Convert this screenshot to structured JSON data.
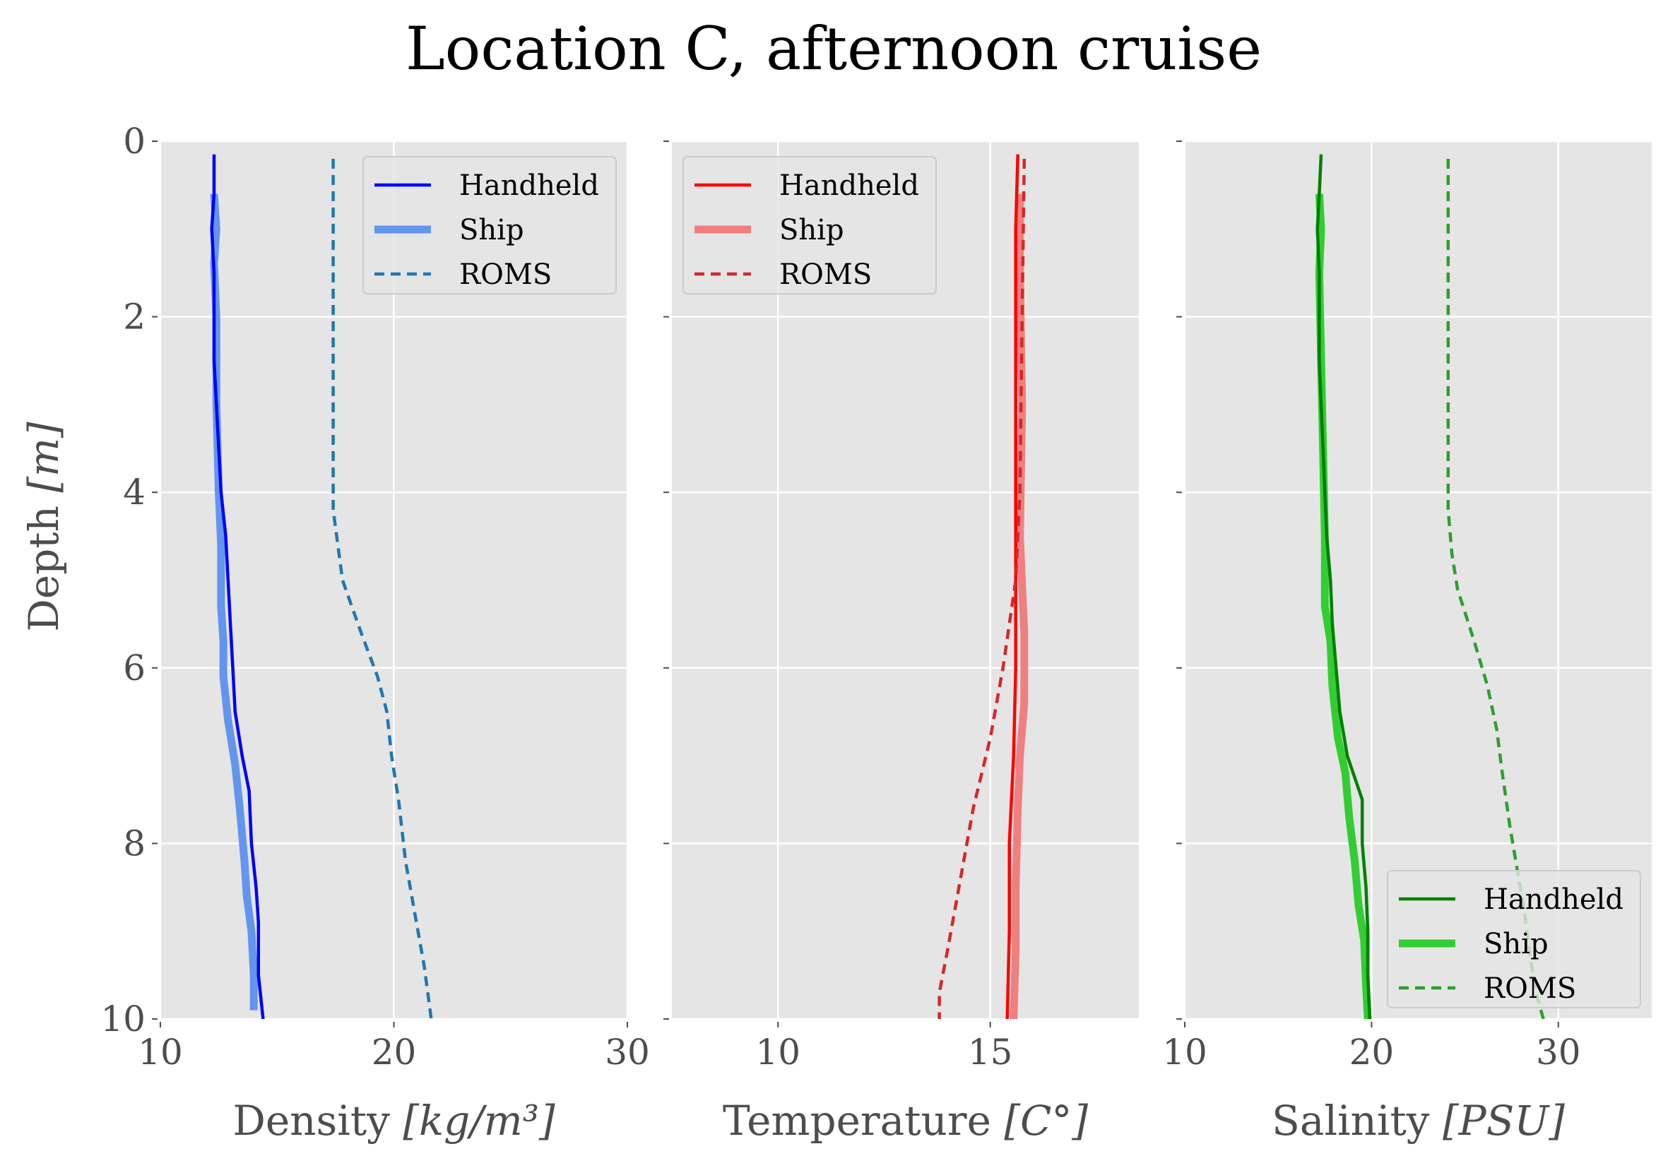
{
  "title": "Location C, afternoon cruise",
  "y_axis": {
    "label_main": "Depth ",
    "label_unit": "[m]",
    "ticks": [
      "0",
      "2",
      "4",
      "6",
      "8",
      "10"
    ]
  },
  "chart_data": [
    {
      "type": "line",
      "panel": "density",
      "xlabel_main": "Density ",
      "xlabel_unit": "[kg/m³]",
      "xlim": [
        10,
        30
      ],
      "ylim": [
        10,
        0
      ],
      "xticks": [
        "10",
        "20",
        "30"
      ],
      "grid": true,
      "legend_position": "top-right",
      "series": [
        {
          "name": "Handheld",
          "color": "#0000ff",
          "style": "solid-thin",
          "points": [
            [
              12.3,
              0.15
            ],
            [
              12.3,
              0.6
            ],
            [
              12.2,
              1.0
            ],
            [
              12.3,
              1.5
            ],
            [
              12.3,
              2.5
            ],
            [
              12.5,
              3.5
            ],
            [
              12.6,
              4.0
            ],
            [
              12.8,
              4.5
            ],
            [
              12.9,
              5.0
            ],
            [
              13.0,
              5.5
            ],
            [
              13.1,
              6.0
            ],
            [
              13.2,
              6.5
            ],
            [
              13.5,
              7.0
            ],
            [
              13.8,
              7.4
            ],
            [
              13.9,
              8.0
            ],
            [
              14.1,
              8.5
            ],
            [
              14.2,
              8.9
            ],
            [
              14.2,
              9.5
            ],
            [
              14.4,
              10.0
            ]
          ]
        },
        {
          "name": "Ship",
          "color": "#6495ed",
          "style": "solid-thick",
          "points": [
            [
              12.3,
              0.6
            ],
            [
              12.4,
              1.0
            ],
            [
              12.3,
              1.4
            ],
            [
              12.4,
              2.0
            ],
            [
              12.4,
              3.0
            ],
            [
              12.5,
              4.0
            ],
            [
              12.6,
              4.6
            ],
            [
              12.6,
              5.3
            ],
            [
              12.7,
              5.7
            ],
            [
              12.7,
              6.1
            ],
            [
              12.9,
              6.6
            ],
            [
              13.2,
              7.1
            ],
            [
              13.4,
              7.6
            ],
            [
              13.6,
              8.2
            ],
            [
              13.7,
              8.6
            ],
            [
              13.9,
              9.0
            ],
            [
              14.0,
              9.5
            ],
            [
              14.0,
              9.9
            ]
          ]
        },
        {
          "name": "ROMS",
          "color": "#1f77b4",
          "style": "dashed",
          "points": [
            [
              17.4,
              0.2
            ],
            [
              17.4,
              2.0
            ],
            [
              17.4,
              4.2
            ],
            [
              17.6,
              4.6
            ],
            [
              17.8,
              5.0
            ],
            [
              18.6,
              5.6
            ],
            [
              19.3,
              6.1
            ],
            [
              19.7,
              6.5
            ],
            [
              19.9,
              7.0
            ],
            [
              20.2,
              7.5
            ],
            [
              20.5,
              8.2
            ],
            [
              20.9,
              8.8
            ],
            [
              21.3,
              9.4
            ],
            [
              21.6,
              10.0
            ]
          ]
        }
      ]
    },
    {
      "type": "line",
      "panel": "temperature",
      "xlabel_main": "Temperature ",
      "xlabel_unit": "[C°]",
      "xlim": [
        7.5,
        18.5
      ],
      "ylim": [
        10,
        0
      ],
      "xticks": [
        "10",
        "15"
      ],
      "grid": true,
      "legend_position": "top-left",
      "series": [
        {
          "name": "Handheld",
          "color": "#ff0000",
          "style": "solid-thin",
          "points": [
            [
              15.65,
              0.15
            ],
            [
              15.6,
              1.0
            ],
            [
              15.6,
              2.5
            ],
            [
              15.6,
              4.0
            ],
            [
              15.6,
              5.0
            ],
            [
              15.6,
              6.0
            ],
            [
              15.55,
              7.0
            ],
            [
              15.5,
              7.5
            ],
            [
              15.45,
              8.0
            ],
            [
              15.45,
              9.0
            ],
            [
              15.4,
              10.0
            ]
          ]
        },
        {
          "name": "Ship",
          "color": "#f08080",
          "style": "solid-thick",
          "points": [
            [
              15.7,
              0.6
            ],
            [
              15.7,
              1.5
            ],
            [
              15.75,
              3.0
            ],
            [
              15.7,
              4.5
            ],
            [
              15.8,
              5.6
            ],
            [
              15.8,
              6.4
            ],
            [
              15.7,
              7.0
            ],
            [
              15.65,
              7.6
            ],
            [
              15.6,
              8.5
            ],
            [
              15.6,
              9.2
            ],
            [
              15.55,
              10.0
            ]
          ]
        },
        {
          "name": "ROMS",
          "color": "#d62728",
          "style": "dashed",
          "points": [
            [
              15.8,
              0.2
            ],
            [
              15.75,
              2.0
            ],
            [
              15.7,
              4.0
            ],
            [
              15.6,
              5.0
            ],
            [
              15.3,
              6.0
            ],
            [
              15.0,
              6.8
            ],
            [
              14.6,
              7.6
            ],
            [
              14.3,
              8.4
            ],
            [
              14.0,
              9.2
            ],
            [
              13.8,
              9.7
            ],
            [
              13.8,
              10.0
            ]
          ]
        }
      ]
    },
    {
      "type": "line",
      "panel": "salinity",
      "xlabel_main": "Salinity ",
      "xlabel_unit": "[PSU]",
      "xlim": [
        10,
        35
      ],
      "ylim": [
        10,
        0
      ],
      "xticks": [
        "10",
        "20",
        "30"
      ],
      "grid": true,
      "legend_position": "bottom-right",
      "series": [
        {
          "name": "Handheld",
          "color": "#008000",
          "style": "solid-thin",
          "points": [
            [
              17.3,
              0.15
            ],
            [
              17.2,
              0.6
            ],
            [
              17.1,
              1.0
            ],
            [
              17.2,
              1.5
            ],
            [
              17.2,
              2.5
            ],
            [
              17.4,
              3.5
            ],
            [
              17.6,
              4.5
            ],
            [
              17.8,
              5.0
            ],
            [
              17.9,
              5.5
            ],
            [
              18.1,
              6.0
            ],
            [
              18.3,
              6.5
            ],
            [
              18.7,
              7.0
            ],
            [
              19.5,
              7.5
            ],
            [
              19.5,
              8.0
            ],
            [
              19.7,
              8.5
            ],
            [
              19.8,
              9.0
            ],
            [
              19.8,
              9.5
            ],
            [
              19.9,
              10.0
            ]
          ]
        },
        {
          "name": "Ship",
          "color": "#32cd32",
          "style": "solid-thick",
          "points": [
            [
              17.2,
              0.6
            ],
            [
              17.3,
              1.0
            ],
            [
              17.2,
              1.5
            ],
            [
              17.3,
              2.5
            ],
            [
              17.4,
              3.5
            ],
            [
              17.5,
              4.5
            ],
            [
              17.5,
              5.3
            ],
            [
              17.8,
              5.7
            ],
            [
              17.9,
              6.2
            ],
            [
              18.2,
              6.8
            ],
            [
              18.6,
              7.2
            ],
            [
              18.8,
              7.7
            ],
            [
              19.1,
              8.2
            ],
            [
              19.3,
              8.7
            ],
            [
              19.6,
              9.1
            ],
            [
              19.7,
              9.6
            ],
            [
              19.8,
              10.0
            ]
          ]
        },
        {
          "name": "ROMS",
          "color": "#2ca02c",
          "style": "dashed",
          "points": [
            [
              24.1,
              0.2
            ],
            [
              24.1,
              2.0
            ],
            [
              24.1,
              4.2
            ],
            [
              24.3,
              4.7
            ],
            [
              24.6,
              5.1
            ],
            [
              25.5,
              5.7
            ],
            [
              26.2,
              6.2
            ],
            [
              26.7,
              6.7
            ],
            [
              27.0,
              7.2
            ],
            [
              27.4,
              7.8
            ],
            [
              27.8,
              8.3
            ],
            [
              28.2,
              8.8
            ],
            [
              28.5,
              9.3
            ],
            [
              28.8,
              9.7
            ],
            [
              29.2,
              10.0
            ]
          ]
        }
      ]
    }
  ]
}
